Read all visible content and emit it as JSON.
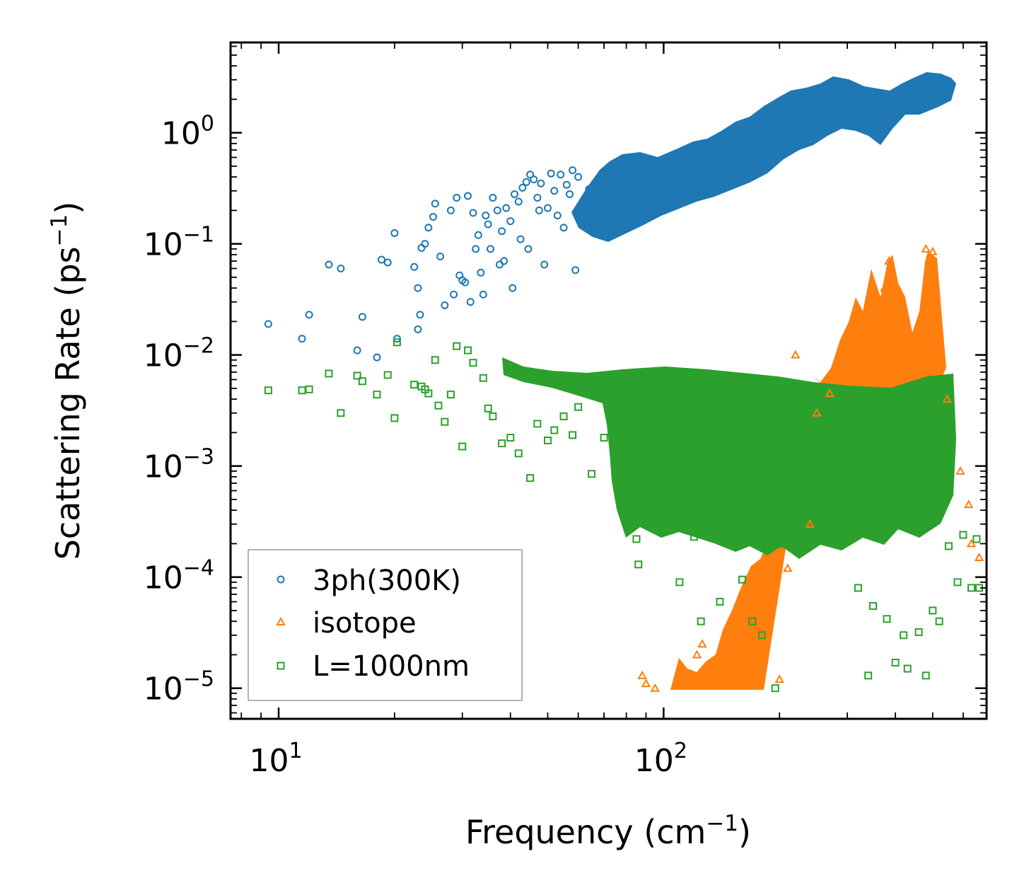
{
  "chart_data": {
    "type": "scatter",
    "x_scale": "log",
    "y_scale": "log",
    "xlim": [
      7.5,
      690
    ],
    "ylim": [
      5.3e-06,
      6.5
    ],
    "xlabel": {
      "text": "Frequency (cm",
      "sup": "−1",
      "tail": ")"
    },
    "ylabel": {
      "text": "Scattering Rate (ps",
      "sup": "−1",
      "tail": ")"
    },
    "x_ticks": [
      {
        "value": 10,
        "base": "10",
        "exp": "1"
      },
      {
        "value": 100,
        "base": "10",
        "exp": "2"
      }
    ],
    "y_ticks": [
      {
        "value": 1e-05,
        "base": "10",
        "exp": "−5"
      },
      {
        "value": 0.0001,
        "base": "10",
        "exp": "−4"
      },
      {
        "value": 0.001,
        "base": "10",
        "exp": "−3"
      },
      {
        "value": 0.01,
        "base": "10",
        "exp": "−2"
      },
      {
        "value": 0.1,
        "base": "10",
        "exp": "−1"
      },
      {
        "value": 1,
        "base": "10",
        "exp": "0"
      }
    ],
    "legend_position": "bottom-left",
    "series": [
      {
        "name": "3ph(300K)",
        "marker": "circle",
        "color": "#1f77b4",
        "points": [
          [
            9.4,
            0.019
          ],
          [
            11.5,
            0.014
          ],
          [
            12,
            0.023
          ],
          [
            13.5,
            0.065
          ],
          [
            14.5,
            0.06
          ],
          [
            16,
            0.011
          ],
          [
            16.5,
            0.022
          ],
          [
            18,
            0.0095
          ],
          [
            18.5,
            0.072
          ],
          [
            19.2,
            0.068
          ],
          [
            20,
            0.125
          ],
          [
            20.3,
            0.014
          ],
          [
            22.5,
            0.062
          ],
          [
            23,
            0.04
          ],
          [
            23,
            0.017
          ],
          [
            23.3,
            0.023
          ],
          [
            23.5,
            0.092
          ],
          [
            24,
            0.1
          ],
          [
            24.5,
            0.14
          ],
          [
            25.2,
            0.175
          ],
          [
            25.5,
            0.23
          ],
          [
            26.3,
            0.077
          ],
          [
            27,
            0.028
          ],
          [
            28,
            0.2
          ],
          [
            28.5,
            0.035
          ],
          [
            29,
            0.26
          ],
          [
            29.5,
            0.052
          ],
          [
            30,
            0.047
          ],
          [
            30.5,
            0.045
          ],
          [
            31,
            0.27
          ],
          [
            31.5,
            0.03
          ],
          [
            32,
            0.19
          ],
          [
            32.5,
            0.09
          ],
          [
            33,
            0.12
          ],
          [
            33.5,
            0.055
          ],
          [
            34,
            0.035
          ],
          [
            34.5,
            0.18
          ],
          [
            35,
            0.15
          ],
          [
            35.5,
            0.09
          ],
          [
            36,
            0.26
          ],
          [
            37,
            0.2
          ],
          [
            37.5,
            0.065
          ],
          [
            38,
            0.13
          ],
          [
            38.5,
            0.07
          ],
          [
            39,
            0.21
          ],
          [
            40,
            0.16
          ],
          [
            40.5,
            0.04
          ],
          [
            41,
            0.28
          ],
          [
            42,
            0.24
          ],
          [
            42.5,
            0.11
          ],
          [
            43,
            0.32
          ],
          [
            44,
            0.36
          ],
          [
            44.5,
            0.09
          ],
          [
            45,
            0.42
          ],
          [
            46,
            0.38
          ],
          [
            47,
            0.26
          ],
          [
            47.5,
            0.2
          ],
          [
            48,
            0.35
          ],
          [
            49,
            0.065
          ],
          [
            50,
            0.21
          ],
          [
            51,
            0.43
          ],
          [
            52,
            0.3
          ],
          [
            53,
            0.18
          ],
          [
            54,
            0.42
          ],
          [
            55,
            0.14
          ],
          [
            56,
            0.34
          ],
          [
            57,
            0.28
          ],
          [
            58,
            0.46
          ],
          [
            59,
            0.058
          ],
          [
            60,
            0.4
          ],
          [
            62,
            0.22
          ],
          [
            64,
            0.31
          ]
        ]
      },
      {
        "name": "isotope",
        "marker": "triangle",
        "color": "#ff7f0e",
        "points": [
          [
            88,
            1.3e-05
          ],
          [
            90,
            1.1e-05
          ],
          [
            95,
            1e-05
          ],
          [
            112,
            1.05e-05
          ],
          [
            118,
            1.2e-05
          ],
          [
            122,
            2e-05
          ],
          [
            126,
            2.5e-05
          ],
          [
            133,
            1.3e-05
          ],
          [
            140,
            1.2e-05
          ],
          [
            148,
            1.6e-05
          ],
          [
            155,
            1.4e-05
          ],
          [
            160,
            1.8e-05
          ],
          [
            168,
            2.5e-05
          ],
          [
            172,
            3.2e-05
          ],
          [
            180,
            2.6e-05
          ],
          [
            188,
            4.5e-05
          ],
          [
            192,
            6e-05
          ],
          [
            200,
            1.2e-05
          ],
          [
            210,
            0.00012
          ],
          [
            220,
            0.01
          ],
          [
            240,
            0.0003
          ],
          [
            250,
            0.003
          ],
          [
            270,
            0.0045
          ],
          [
            300,
            0.006
          ],
          [
            355,
            0.014
          ],
          [
            375,
            0.04
          ],
          [
            385,
            0.07
          ],
          [
            420,
            0.022
          ],
          [
            440,
            0.015
          ],
          [
            480,
            0.09
          ],
          [
            500,
            0.085
          ],
          [
            545,
            0.004
          ],
          [
            590,
            0.0009
          ],
          [
            620,
            0.00045
          ],
          [
            630,
            0.0002
          ],
          [
            660,
            0.00015
          ]
        ]
      },
      {
        "name": "L=1000nm",
        "marker": "square",
        "color": "#2ca02c",
        "points": [
          [
            9.4,
            0.0048
          ],
          [
            11.5,
            0.0048
          ],
          [
            12,
            0.0049
          ],
          [
            13.5,
            0.0068
          ],
          [
            14.5,
            0.003
          ],
          [
            16,
            0.0065
          ],
          [
            16.5,
            0.0058
          ],
          [
            18,
            0.0044
          ],
          [
            19.2,
            0.0066
          ],
          [
            20,
            0.0027
          ],
          [
            20.3,
            0.013
          ],
          [
            22.5,
            0.0054
          ],
          [
            23.5,
            0.0052
          ],
          [
            24,
            0.0049
          ],
          [
            24.5,
            0.0045
          ],
          [
            25.5,
            0.009
          ],
          [
            26,
            0.0035
          ],
          [
            27,
            0.0025
          ],
          [
            28,
            0.0044
          ],
          [
            29,
            0.012
          ],
          [
            30,
            0.0015
          ],
          [
            31,
            0.011
          ],
          [
            32,
            0.0085
          ],
          [
            34,
            0.0062
          ],
          [
            35,
            0.0033
          ],
          [
            36,
            0.0028
          ],
          [
            38,
            0.0016
          ],
          [
            40,
            0.0018
          ],
          [
            42,
            0.0013
          ],
          [
            45,
            0.00078
          ],
          [
            47,
            0.0024
          ],
          [
            50,
            0.0017
          ],
          [
            52,
            0.0021
          ],
          [
            55,
            0.0028
          ],
          [
            58,
            0.0019
          ],
          [
            60,
            0.0034
          ],
          [
            65,
            0.00085
          ],
          [
            70,
            0.0018
          ],
          [
            75,
            0.0009
          ],
          [
            80,
            0.0016
          ],
          [
            82,
            0.0005
          ],
          [
            84,
            0.0003
          ],
          [
            85,
            0.00022
          ],
          [
            86,
            0.00013
          ],
          [
            90,
            0.00055
          ],
          [
            100,
            0.00038
          ],
          [
            110,
            9e-05
          ],
          [
            120,
            0.00023
          ],
          [
            125,
            4e-05
          ],
          [
            130,
            0.00032
          ],
          [
            140,
            6e-05
          ],
          [
            150,
            0.0002
          ],
          [
            160,
            9.5e-05
          ],
          [
            170,
            4e-05
          ],
          [
            180,
            3e-05
          ],
          [
            195,
            1e-05
          ],
          [
            200,
            0.0002
          ],
          [
            230,
            0.0004
          ],
          [
            260,
            0.0003
          ],
          [
            300,
            0.00045
          ],
          [
            320,
            8e-05
          ],
          [
            340,
            1.3e-05
          ],
          [
            350,
            5.5e-05
          ],
          [
            380,
            4.2e-05
          ],
          [
            400,
            1.7e-05
          ],
          [
            420,
            3e-05
          ],
          [
            430,
            1.5e-05
          ],
          [
            460,
            3.2e-05
          ],
          [
            480,
            1.3e-05
          ],
          [
            500,
            5e-05
          ],
          [
            520,
            4e-05
          ],
          [
            550,
            0.00019
          ],
          [
            580,
            9e-05
          ],
          [
            600,
            0.00024
          ],
          [
            630,
            8e-05
          ],
          [
            650,
            0.00022
          ],
          [
            660,
            8e-05
          ]
        ]
      }
    ]
  }
}
